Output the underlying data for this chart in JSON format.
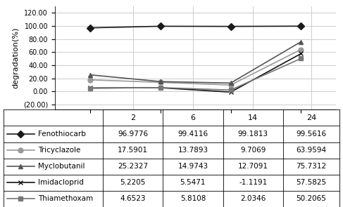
{
  "x": [
    2,
    6,
    14,
    24
  ],
  "x_positions": [
    1,
    2,
    3,
    4
  ],
  "series": [
    {
      "name": "Fenothiocarb",
      "values": [
        96.9776,
        99.4116,
        99.1813,
        99.5616
      ],
      "color": "#1a1a1a",
      "marker": "D",
      "linewidth": 1.2,
      "markersize": 5
    },
    {
      "name": "Tricyclazole",
      "values": [
        17.5901,
        13.7893,
        9.7069,
        63.9594
      ],
      "color": "#999999",
      "marker": "o",
      "linewidth": 1.2,
      "markersize": 5
    },
    {
      "name": "Myclobutanil",
      "values": [
        25.2327,
        14.9743,
        12.7091,
        75.7312
      ],
      "color": "#555555",
      "marker": "^",
      "linewidth": 1.2,
      "markersize": 5
    },
    {
      "name": "Imidacloprid",
      "values": [
        5.2205,
        5.5471,
        -1.1191,
        57.5825
      ],
      "color": "#111111",
      "marker": "x",
      "linewidth": 1.2,
      "markersize": 5
    },
    {
      "name": "Thiamethoxam",
      "values": [
        4.6523,
        5.8108,
        2.0346,
        50.2065
      ],
      "color": "#777777",
      "marker": "s",
      "linewidth": 1.2,
      "markersize": 5
    }
  ],
  "table_data": [
    [
      "96.9776",
      "99.4116",
      "99.1813",
      "99.5616"
    ],
    [
      "17.5901",
      "13.7893",
      "9.7069",
      "63.9594"
    ],
    [
      "25.2327",
      "14.9743",
      "12.7091",
      "75.7312"
    ],
    [
      "5.2205",
      "5.5471",
      "-1.1191",
      "57.5825"
    ],
    [
      "4.6523",
      "5.8108",
      "2.0346",
      "50.2065"
    ]
  ],
  "row_labels": [
    "Fenothiocarb",
    "Tricyclazole",
    "Myclobutanil",
    "Imidacloprid",
    "Thiamethoxam"
  ],
  "col_labels": [
    "2",
    "6",
    "14",
    "24"
  ],
  "ylabel": "degradation(%)",
  "yticks": [
    -20,
    0,
    20,
    40,
    60,
    80,
    100,
    120
  ],
  "ytick_labels": [
    "(20.00)",
    "0.00",
    "20.00",
    "40.00",
    "60.00",
    "80.00",
    "100.00",
    "120.00"
  ],
  "ylim": [
    -28,
    130
  ],
  "xlim": [
    0.5,
    4.5
  ]
}
